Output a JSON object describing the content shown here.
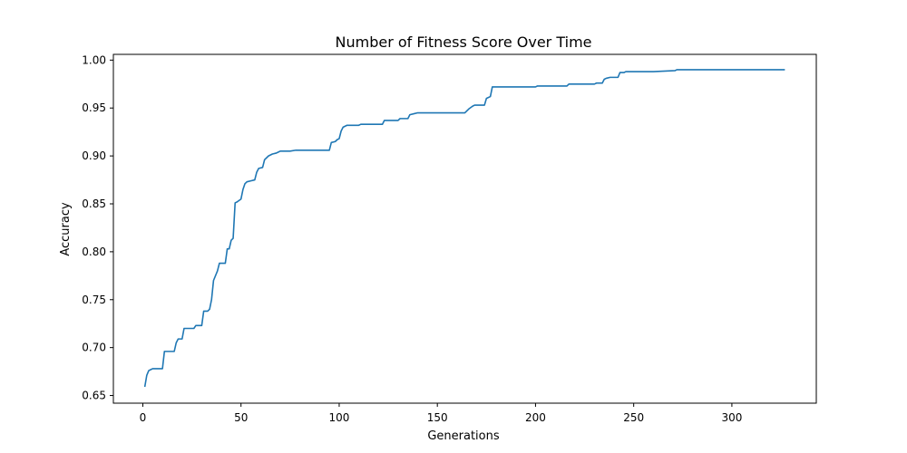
{
  "chart_data": {
    "type": "line",
    "title": "Number of Fitness Score Over Time",
    "xlabel": "Generations",
    "ylabel": "Accuracy",
    "xlim": [
      -15,
      343
    ],
    "ylim": [
      0.642,
      1.006
    ],
    "xticks": [
      0,
      50,
      100,
      150,
      200,
      250,
      300
    ],
    "yticks": [
      0.65,
      0.7,
      0.75,
      0.8,
      0.85,
      0.9,
      0.95,
      1.0
    ],
    "xtick_labels": [
      "0",
      "50",
      "100",
      "150",
      "200",
      "250",
      "300"
    ],
    "ytick_labels": [
      "0.65",
      "0.70",
      "0.75",
      "0.80",
      "0.85",
      "0.90",
      "0.95",
      "1.00"
    ],
    "grid": false,
    "series": [
      {
        "color": "#1f77b4",
        "x": [
          1,
          2,
          3,
          4,
          5,
          6,
          10,
          11,
          16,
          17,
          18,
          20,
          21,
          26,
          27,
          30,
          31,
          33,
          34,
          35,
          36,
          38,
          39,
          42,
          43,
          44,
          45,
          46,
          47,
          48,
          50,
          51,
          52,
          53,
          55,
          57,
          58,
          59,
          61,
          62,
          64,
          66,
          68,
          69,
          70,
          71,
          75,
          78,
          80,
          90,
          95,
          96,
          98,
          99,
          100,
          101,
          102,
          104,
          110,
          111,
          115,
          122,
          123,
          130,
          131,
          135,
          136,
          138,
          140,
          141,
          164,
          166,
          168,
          169,
          170,
          174,
          175,
          177,
          178,
          179,
          200,
          201,
          216,
          217,
          230,
          231,
          234,
          235,
          236,
          238,
          242,
          243,
          245,
          246,
          248,
          249,
          255,
          260,
          271,
          272,
          280,
          295,
          296,
          310,
          320,
          327
        ],
        "y": [
          0.659,
          0.671,
          0.676,
          0.677,
          0.678,
          0.678,
          0.678,
          0.696,
          0.696,
          0.705,
          0.709,
          0.709,
          0.72,
          0.72,
          0.723,
          0.723,
          0.738,
          0.738,
          0.74,
          0.75,
          0.77,
          0.78,
          0.788,
          0.788,
          0.803,
          0.803,
          0.812,
          0.814,
          0.851,
          0.852,
          0.855,
          0.865,
          0.871,
          0.873,
          0.874,
          0.875,
          0.883,
          0.887,
          0.888,
          0.896,
          0.9,
          0.902,
          0.903,
          0.904,
          0.905,
          0.905,
          0.905,
          0.906,
          0.906,
          0.906,
          0.906,
          0.914,
          0.915,
          0.917,
          0.918,
          0.926,
          0.93,
          0.932,
          0.932,
          0.933,
          0.933,
          0.933,
          0.937,
          0.937,
          0.939,
          0.939,
          0.943,
          0.944,
          0.945,
          0.945,
          0.945,
          0.949,
          0.952,
          0.953,
          0.953,
          0.953,
          0.96,
          0.962,
          0.972,
          0.972,
          0.972,
          0.973,
          0.973,
          0.975,
          0.975,
          0.976,
          0.976,
          0.98,
          0.981,
          0.982,
          0.982,
          0.987,
          0.987,
          0.988,
          0.988,
          0.988,
          0.988,
          0.988,
          0.989,
          0.99,
          0.99,
          0.99,
          0.99,
          0.99,
          0.99,
          0.99
        ]
      }
    ]
  }
}
